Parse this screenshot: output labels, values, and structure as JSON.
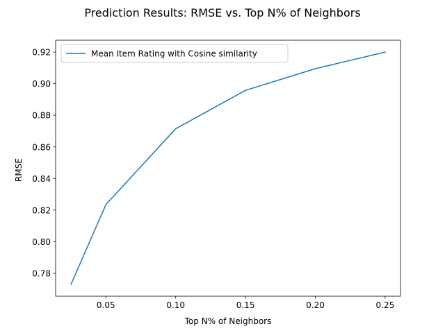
{
  "chart_data": {
    "type": "line",
    "title": "Prediction Results: RMSE vs. Top N% of Neighbors",
    "xlabel": "Top N% of Neighbors",
    "ylabel": "RMSE",
    "xlim": [
      0.014,
      0.261
    ],
    "ylim": [
      0.7655,
      0.9275
    ],
    "x_ticks": [
      0.05,
      0.1,
      0.15,
      0.2,
      0.25
    ],
    "x_tick_labels": [
      "0.05",
      "0.10",
      "0.15",
      "0.20",
      "0.25"
    ],
    "y_ticks": [
      0.78,
      0.8,
      0.82,
      0.84,
      0.86,
      0.88,
      0.9,
      0.92
    ],
    "y_tick_labels": [
      "0.78",
      "0.80",
      "0.82",
      "0.84",
      "0.86",
      "0.88",
      "0.90",
      "0.92"
    ],
    "grid": false,
    "legend": "upper-left",
    "series": [
      {
        "name": "Mean Item Rating with Cosine similarity",
        "color": "#1f77b4",
        "x": [
          0.025,
          0.05,
          0.1,
          0.15,
          0.2,
          0.25
        ],
        "y": [
          0.773,
          0.8235,
          0.8715,
          0.8958,
          0.9095,
          0.92
        ]
      }
    ]
  }
}
